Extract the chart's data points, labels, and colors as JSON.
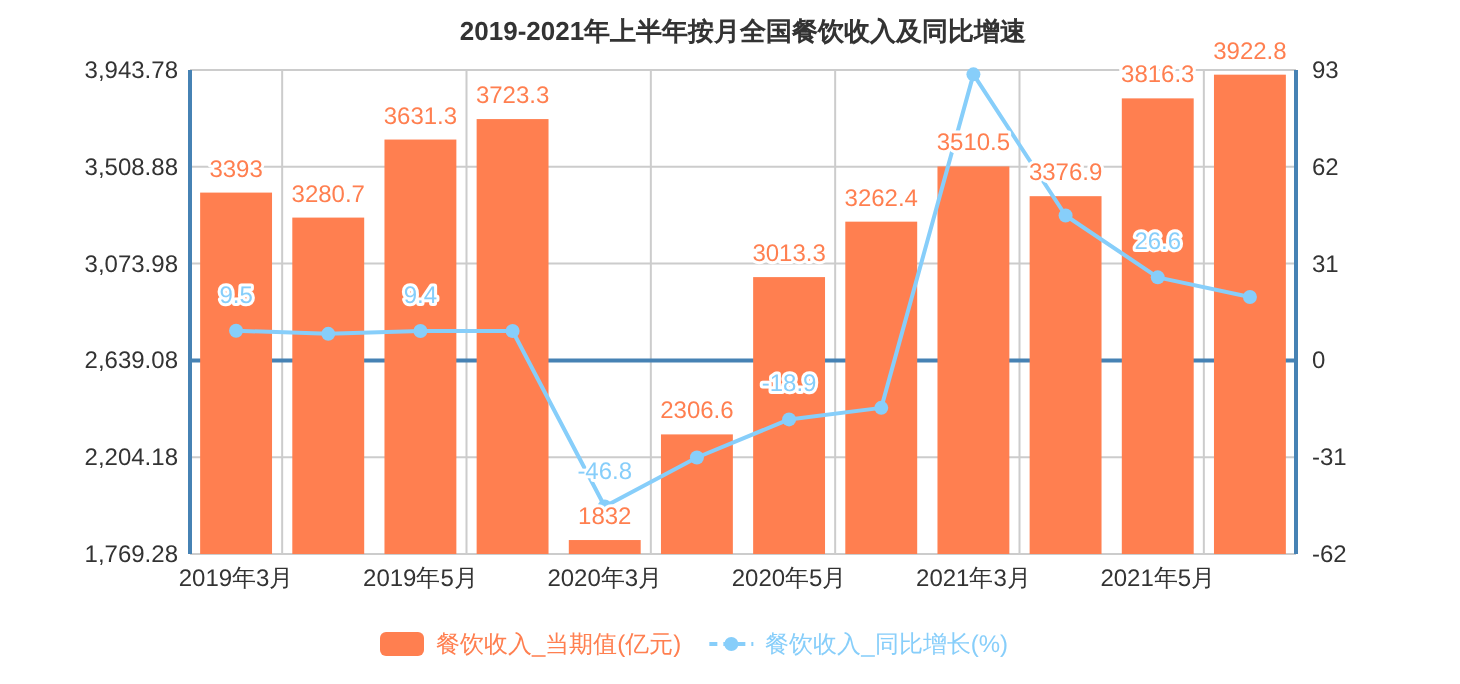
{
  "chart_data": {
    "type": "bar",
    "title": "2019-2021年上半年按月全国餐饮收入及同比增速",
    "categories": [
      "2019年3月",
      null,
      "2019年5月",
      null,
      "2020年3月",
      null,
      "2020年5月",
      null,
      "2021年3月",
      null,
      "2021年5月",
      null
    ],
    "series": [
      {
        "name": "餐饮收入_当期值(亿元)",
        "color": "#ff7f50",
        "values": [
          3393,
          3280.7,
          3631.3,
          3723.3,
          1832,
          2306.6,
          3013.3,
          3262.4,
          3510.5,
          3376.9,
          3816.3,
          3922.8
        ],
        "value_labels": [
          "3393",
          "3280.7",
          "3631.3",
          "3723.3",
          "1832",
          "2306.6",
          "3013.3",
          "3262.4",
          "3510.5",
          "3376.9",
          "3816.3",
          "3922.8"
        ]
      },
      {
        "name": "餐饮收入_同比增长(%)",
        "type": "line",
        "axis": "y2",
        "color": "#87cefa",
        "marker": "circle",
        "values": [
          9.5,
          8.5,
          9.4,
          9.4,
          -46.8,
          -31.1,
          -18.9,
          -15.2,
          91.6,
          46.4,
          26.6,
          20.3
        ],
        "value_labels": [
          "9.5",
          null,
          "9.4",
          null,
          "-46.8",
          null,
          "-18.9",
          null,
          null,
          null,
          "26.6",
          null
        ]
      }
    ],
    "ylim": [
      1769.28,
      3943.78
    ],
    "yticks": [
      {
        "value": 1769.28,
        "label": "1,769.28"
      },
      {
        "value": 2204.18,
        "label": "2,204.18"
      },
      {
        "value": 2639.08,
        "label": "2,639.08"
      },
      {
        "value": 3073.98,
        "label": "3,073.98"
      },
      {
        "value": 3508.88,
        "label": "3,508.88"
      },
      {
        "value": 3943.78,
        "label": "3,943.78"
      }
    ],
    "y2lim": [
      -62,
      93
    ],
    "y2ticks": [
      -62,
      -31,
      0,
      31,
      62,
      93
    ],
    "ref_lines": [
      {
        "axis": "y2",
        "value": 0,
        "color": "#4682b4"
      }
    ],
    "grid": true,
    "legend": "bottom"
  }
}
